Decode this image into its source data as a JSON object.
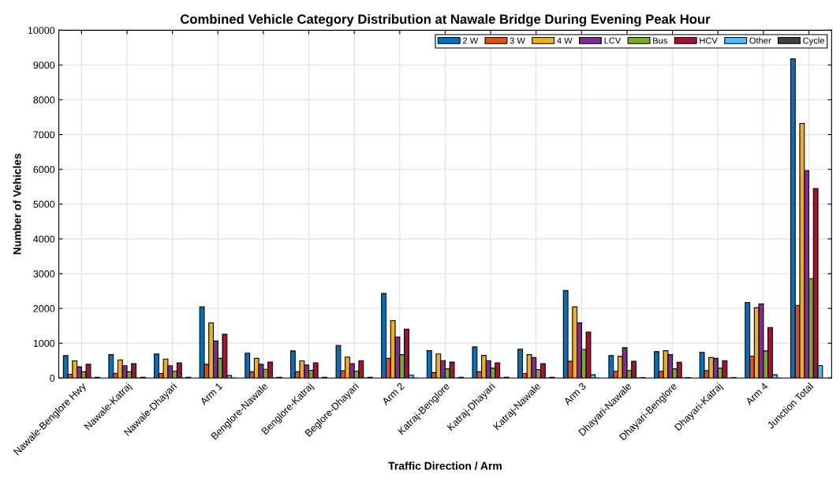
{
  "chart_data": {
    "type": "bar",
    "title": "Combined Vehicle Category Distribution at Nawale Bridge During Evening Peak Hour",
    "xlabel": "Traffic Direction / Arm",
    "ylabel": "Number of Vehicles",
    "categories": [
      "Nawale-Benglore Hwy",
      "Nawale-Katraj",
      "Nawale-Dhayari",
      "Arm 1",
      "Benglore-Nawale",
      "Benglore-Katraj",
      "Beglore-Dhayari",
      "Arm 2",
      "Katraj-Benglore",
      "Katraj-Dhayari",
      "Katraj-Nawale",
      "Arm 3",
      "Dhayari-Nawale",
      "Dhayari-Benglore",
      "Dhayari-Katraj",
      "Arm 4",
      "Junction Total"
    ],
    "series": [
      {
        "name": "2 W",
        "color": "#0072bd",
        "values": [
          643,
          671,
          693,
          2043,
          714,
          779,
          936,
          2429,
          786,
          893,
          829,
          2514,
          643,
          757,
          736,
          2171,
          9179
        ]
      },
      {
        "name": "3 W",
        "color": "#d95319",
        "values": [
          107,
          136,
          129,
          393,
          179,
          179,
          206,
          564,
          157,
          179,
          129,
          479,
          193,
          193,
          214,
          629,
          2086
        ]
      },
      {
        "name": "4 W",
        "color": "#edb120",
        "values": [
          493,
          521,
          543,
          1586,
          564,
          493,
          600,
          1650,
          693,
          650,
          671,
          2043,
          621,
          786,
          586,
          2021,
          7321
        ]
      },
      {
        "name": "LCV",
        "color": "#7e2f8e",
        "values": [
          321,
          350,
          350,
          1064,
          393,
          371,
          415,
          1179,
          500,
          500,
          586,
          1586,
          871,
          671,
          564,
          2129,
          5964
        ]
      },
      {
        "name": "Bus",
        "color": "#77ac30",
        "values": [
          179,
          179,
          200,
          564,
          250,
          221,
          200,
          671,
          264,
          286,
          243,
          821,
          214,
          264,
          286,
          779,
          2857
        ]
      },
      {
        "name": "HCV",
        "color": "#a2142f",
        "values": [
          393,
          414,
          436,
          1257,
          457,
          436,
          500,
          1407,
          457,
          436,
          414,
          1321,
          479,
          450,
          500,
          1450,
          5450
        ]
      },
      {
        "name": "Other",
        "color": "#4dbeee",
        "values": [
          0,
          0,
          0,
          71,
          0,
          0,
          0,
          86,
          0,
          0,
          0,
          93,
          0,
          0,
          0,
          93,
          357
        ]
      },
      {
        "name": "Cycle",
        "color": "#404040",
        "values": [
          20,
          20,
          20,
          0,
          20,
          20,
          20,
          0,
          20,
          20,
          20,
          0,
          10,
          10,
          10,
          0,
          null
        ]
      }
    ],
    "ylim": [
      0,
      10000
    ],
    "yticks": [
      0,
      1000,
      2000,
      3000,
      4000,
      5000,
      6000,
      7000,
      8000,
      9000,
      10000
    ],
    "grid": true,
    "legend": "top right"
  }
}
